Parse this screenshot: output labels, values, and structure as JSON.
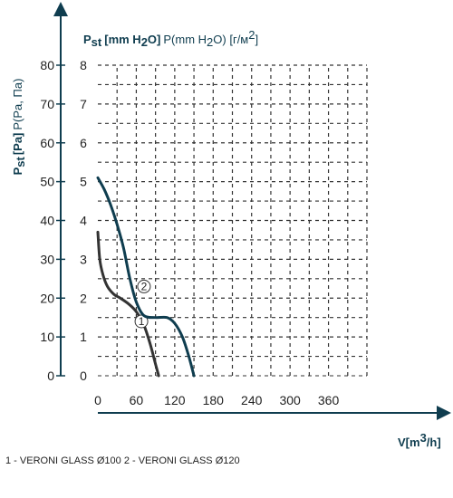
{
  "chart_data": {
    "type": "line",
    "y_title_left_bold": "P",
    "y_title_left_sub": "st",
    "y_title_left_bold2": "[Pa]",
    "y_title_left_rest": "P(Pa, Па)",
    "y_title_right_bold": "P",
    "y_title_right_sub": "st",
    "y_title_right_bold2": "[mm H",
    "y_title_right_bold_sub": "2",
    "y_title_right_bold3": "O]",
    "y_title_right_rest": "P(mm H",
    "y_title_right_rest_sub": "2",
    "y_title_right_rest2": "O) [г/м",
    "y_title_right_rest_sup": "2",
    "y_title_right_rest3": "]",
    "x_title": "V[m",
    "x_title_sup": "3",
    "x_title_rest": "/h]",
    "x_ticks": [
      "0",
      "60",
      "120",
      "180",
      "240",
      "300",
      "360"
    ],
    "y_ticks_pa": [
      "0",
      "10",
      "20",
      "30",
      "40",
      "50",
      "60",
      "70",
      "80"
    ],
    "y_ticks_mm": [
      "0",
      "1",
      "2",
      "3",
      "4",
      "5",
      "6",
      "7",
      "8"
    ],
    "xlim": [
      0,
      420
    ],
    "ylim": [
      0,
      80
    ],
    "grid": true,
    "series": [
      {
        "marker_label": "1",
        "color": "#333333",
        "points": [
          [
            0,
            37
          ],
          [
            3,
            30
          ],
          [
            8,
            26
          ],
          [
            15,
            23
          ],
          [
            25,
            21
          ],
          [
            35,
            20
          ],
          [
            48,
            18.5
          ],
          [
            60,
            16.5
          ],
          [
            72,
            13
          ],
          [
            82,
            8
          ],
          [
            90,
            3
          ],
          [
            95,
            0
          ]
        ]
      },
      {
        "marker_label": "2",
        "color": "#0f3d4f",
        "points": [
          [
            0,
            51
          ],
          [
            10,
            48
          ],
          [
            20,
            44
          ],
          [
            30,
            39
          ],
          [
            40,
            33
          ],
          [
            50,
            25
          ],
          [
            60,
            19
          ],
          [
            72,
            15.5
          ],
          [
            90,
            15
          ],
          [
            108,
            15
          ],
          [
            120,
            13.5
          ],
          [
            132,
            10
          ],
          [
            142,
            5
          ],
          [
            150,
            0
          ]
        ]
      }
    ],
    "legend": "1 - VERONI GLASS Ø100   2 - VERONI GLASS Ø120"
  }
}
